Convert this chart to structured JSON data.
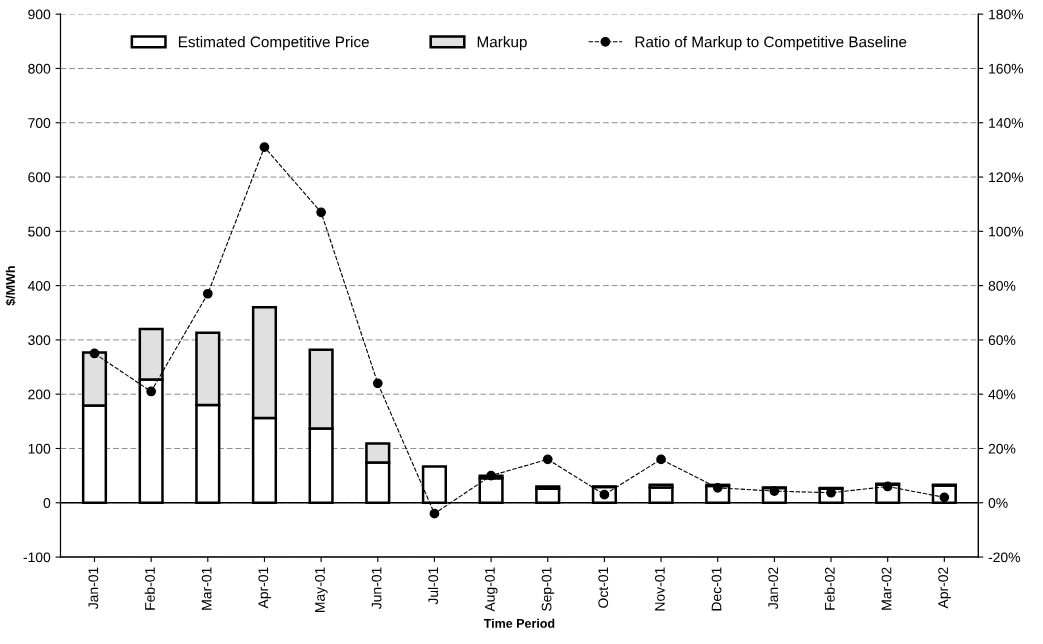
{
  "chart_data": {
    "type": "bar",
    "xlabel": "Time Period",
    "ylabel": "$/MWh",
    "stacked": true,
    "categories": [
      "Jan-01",
      "Feb-01",
      "Mar-01",
      "Apr-01",
      "May-01",
      "Jun-01",
      "Jul-01",
      "Aug-01",
      "Sep-01",
      "Oct-01",
      "Nov-01",
      "Dec-01",
      "Jan-02",
      "Feb-02",
      "Mar-02",
      "Apr-02"
    ],
    "series": [
      {
        "name": "Estimated Competitive Price",
        "color": "#ffffff",
        "values": [
          179,
          227,
          180,
          156,
          137,
          74,
          67,
          45,
          26,
          29,
          28,
          31,
          27,
          26,
          33,
          32
        ]
      },
      {
        "name": "Markup",
        "color": "#e0e0e0",
        "values": [
          98,
          93,
          133,
          204,
          145,
          35,
          null,
          5,
          4,
          1,
          5,
          2,
          1,
          1,
          2,
          1
        ]
      },
      {
        "name": "Ratio of Markup to Competitive Baseline",
        "type": "line",
        "axis": "y2",
        "color": "#000000",
        "values": [
          55,
          41,
          77,
          131,
          107,
          44,
          -4,
          10,
          16,
          3,
          16,
          5.5,
          4.3,
          3.7,
          6,
          2
        ]
      }
    ],
    "ylim": [
      -100,
      900
    ],
    "yticks": [
      -100,
      0,
      100,
      200,
      300,
      400,
      500,
      600,
      700,
      800,
      900
    ],
    "y2lim": [
      -20,
      180
    ],
    "y2ticks": [
      {
        "value": -20,
        "label": "-20%"
      },
      {
        "value": 0,
        "label": "0%"
      },
      {
        "value": 20,
        "label": "20%"
      },
      {
        "value": 40,
        "label": "40%"
      },
      {
        "value": 60,
        "label": "60%"
      },
      {
        "value": 80,
        "label": "80%"
      },
      {
        "value": 100,
        "label": "100%"
      },
      {
        "value": 120,
        "label": "120%"
      },
      {
        "value": 140,
        "label": "140%"
      },
      {
        "value": 160,
        "label": "160%"
      },
      {
        "value": 180,
        "label": "180%"
      }
    ],
    "grid": "y",
    "legend": "top",
    "marker": "circle",
    "line_style": "dashed"
  }
}
